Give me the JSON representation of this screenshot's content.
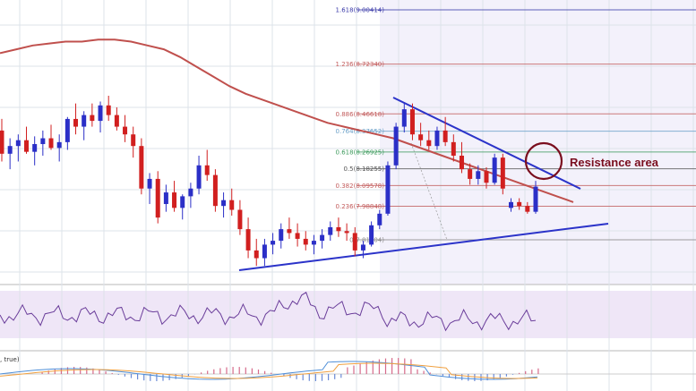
{
  "chart_data": {
    "type": "candlestick",
    "annotation": "Resistance area",
    "indicator_label": ", true)",
    "colors": {
      "bull": "#2b2fc7",
      "bear": "#d11f1f",
      "ma": "#c0504d",
      "trendline": "#2b33c9",
      "rsi": "#6a3d9a",
      "grid": "#dce3ea",
      "fib_zone": "#e9e6f7",
      "rsi_band": "#e8dcf3",
      "macd_blue": "#4f8fd8",
      "macd_orange": "#f0a040",
      "annotation": "#7a0e1e"
    },
    "fib_levels": [
      {
        "ratio": "1.618",
        "price": 9.00414,
        "text": "1.618(9.00414)"
      },
      {
        "ratio": "1.236",
        "price": 8.7234,
        "text": "1.236(8.72340)"
      },
      {
        "ratio": "0.886",
        "price": 8.46618,
        "text": "0.886(8.46618)"
      },
      {
        "ratio": "0.764",
        "price": 8.37652,
        "text": "0.764(8.37652)"
      },
      {
        "ratio": "0.618",
        "price": 8.26925,
        "text": "0.618(8.26925)"
      },
      {
        "ratio": "0.5",
        "price": 8.18255,
        "text": "0.5(8.18255)"
      },
      {
        "ratio": "0.382",
        "price": 8.09578,
        "text": "0.382(8.09578)"
      },
      {
        "ratio": "0.236",
        "price": 7.98848,
        "text": "0.236(7.98848)"
      },
      {
        "ratio": "0",
        "price": 7.81504,
        "text": "0(7.81504)"
      }
    ],
    "ylim": [
      7.6,
      9.1
    ],
    "candles": [
      [
        8.38,
        8.44,
        8.22,
        8.26
      ],
      [
        8.26,
        8.34,
        8.18,
        8.3
      ],
      [
        8.3,
        8.36,
        8.22,
        8.33
      ],
      [
        8.33,
        8.4,
        8.26,
        8.27
      ],
      [
        8.27,
        8.35,
        8.2,
        8.31
      ],
      [
        8.31,
        8.38,
        8.25,
        8.34
      ],
      [
        8.34,
        8.41,
        8.28,
        8.29
      ],
      [
        8.29,
        8.36,
        8.22,
        8.32
      ],
      [
        8.32,
        8.45,
        8.28,
        8.44
      ],
      [
        8.44,
        8.52,
        8.36,
        8.4
      ],
      [
        8.4,
        8.48,
        8.33,
        8.46
      ],
      [
        8.46,
        8.52,
        8.4,
        8.43
      ],
      [
        8.43,
        8.53,
        8.37,
        8.51
      ],
      [
        8.51,
        8.56,
        8.43,
        8.46
      ],
      [
        8.46,
        8.5,
        8.38,
        8.4
      ],
      [
        8.4,
        8.46,
        8.32,
        8.36
      ],
      [
        8.36,
        8.4,
        8.24,
        8.3
      ],
      [
        8.3,
        8.34,
        8.05,
        8.08
      ],
      [
        8.08,
        8.16,
        8.0,
        8.13
      ],
      [
        8.13,
        8.17,
        7.9,
        7.93
      ],
      [
        8.0,
        8.1,
        7.96,
        8.06
      ],
      [
        8.06,
        8.12,
        7.96,
        7.98
      ],
      [
        7.98,
        8.05,
        7.92,
        8.04
      ],
      [
        8.04,
        8.11,
        7.98,
        8.08
      ],
      [
        8.08,
        8.25,
        8.05,
        8.2
      ],
      [
        8.2,
        8.28,
        8.12,
        8.15
      ],
      [
        8.15,
        8.18,
        7.96,
        7.99
      ],
      [
        7.99,
        8.06,
        7.93,
        8.02
      ],
      [
        8.02,
        8.08,
        7.94,
        7.97
      ],
      [
        7.97,
        8.02,
        7.84,
        7.87
      ],
      [
        7.87,
        7.93,
        7.72,
        7.76
      ],
      [
        7.76,
        7.82,
        7.68,
        7.72
      ],
      [
        7.72,
        7.82,
        7.68,
        7.79
      ],
      [
        7.79,
        7.85,
        7.74,
        7.81
      ],
      [
        7.81,
        7.9,
        7.77,
        7.87
      ],
      [
        7.87,
        7.93,
        7.82,
        7.85
      ],
      [
        7.85,
        7.9,
        7.78,
        7.82
      ],
      [
        7.82,
        7.86,
        7.76,
        7.79
      ],
      [
        7.79,
        7.84,
        7.74,
        7.81
      ],
      [
        7.81,
        7.87,
        7.77,
        7.84
      ],
      [
        7.84,
        7.91,
        7.81,
        7.88
      ],
      [
        7.88,
        7.93,
        7.83,
        7.86
      ],
      [
        7.86,
        7.9,
        7.81,
        7.85
      ],
      [
        7.85,
        7.88,
        7.73,
        7.76
      ],
      [
        7.76,
        7.81,
        7.72,
        7.79
      ],
      [
        7.79,
        7.91,
        7.78,
        7.89
      ],
      [
        7.89,
        7.97,
        7.87,
        7.95
      ],
      [
        7.95,
        8.22,
        7.94,
        8.2
      ],
      [
        8.2,
        8.42,
        8.18,
        8.4
      ],
      [
        8.4,
        8.52,
        8.37,
        8.49
      ],
      [
        8.49,
        8.52,
        8.33,
        8.36
      ],
      [
        8.36,
        8.42,
        8.3,
        8.33
      ],
      [
        8.33,
        8.38,
        8.28,
        8.3
      ],
      [
        8.3,
        8.4,
        8.28,
        8.38
      ],
      [
        8.38,
        8.45,
        8.3,
        8.32
      ],
      [
        8.32,
        8.36,
        8.22,
        8.25
      ],
      [
        8.25,
        8.32,
        8.16,
        8.18
      ],
      [
        8.18,
        8.21,
        8.1,
        8.13
      ],
      [
        8.13,
        8.2,
        8.1,
        8.17
      ],
      [
        8.17,
        8.19,
        8.08,
        8.11
      ],
      [
        8.11,
        8.26,
        8.1,
        8.24
      ],
      [
        8.24,
        8.26,
        8.05,
        8.08
      ],
      [
        7.98,
        8.03,
        7.96,
        8.01
      ],
      [
        8.01,
        8.03,
        7.97,
        7.99
      ],
      [
        7.99,
        8.01,
        7.95,
        7.96
      ],
      [
        7.96,
        8.12,
        7.95,
        8.09
      ]
    ],
    "ma": [
      8.78,
      8.8,
      8.82,
      8.83,
      8.84,
      8.84,
      8.85,
      8.85,
      8.84,
      8.82,
      8.8,
      8.76,
      8.71,
      8.66,
      8.61,
      8.57,
      8.54,
      8.51,
      8.48,
      8.45,
      8.42,
      8.4,
      8.38,
      8.36,
      8.34,
      8.31,
      8.28,
      8.25,
      8.22,
      8.19,
      8.16,
      8.13,
      8.1,
      8.07,
      8.04,
      8.01
    ]
  }
}
